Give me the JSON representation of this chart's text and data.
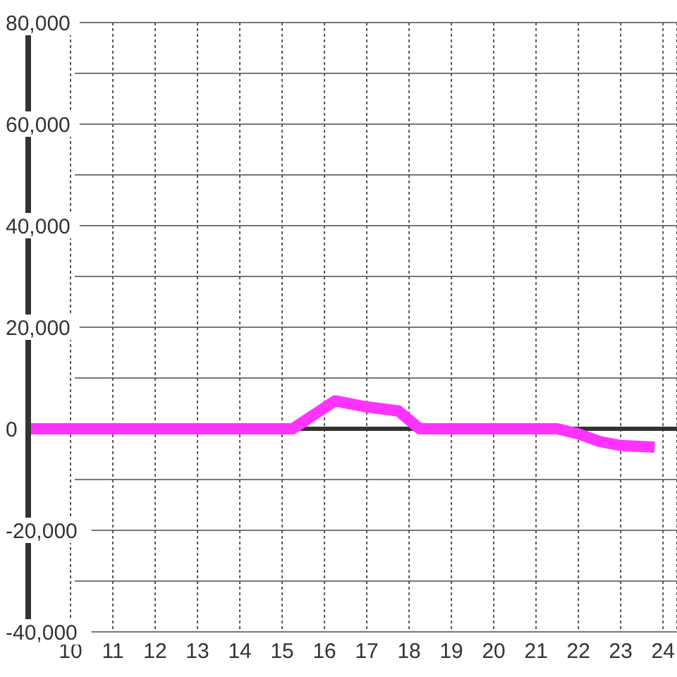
{
  "chart_data": {
    "type": "line",
    "x": [
      9,
      15.25,
      16.25,
      17,
      17.75,
      18.25,
      21.5,
      22,
      22.5,
      23,
      23.8
    ],
    "series": [
      {
        "color": "#ff33ff",
        "values": [
          0,
          0,
          5500,
          4300,
          3500,
          0,
          0,
          -1000,
          -2500,
          -3300,
          -3600
        ]
      }
    ],
    "xlim": [
      9,
      24.33
    ],
    "xticks": [
      10,
      11,
      12,
      13,
      14,
      15,
      16,
      17,
      18,
      19,
      20,
      21,
      22,
      23,
      24
    ],
    "ylim": [
      -40000,
      80000
    ],
    "yticks": [
      {
        "value": -40000,
        "label": "-40,000"
      },
      {
        "value": -30000,
        "label": null
      },
      {
        "value": -20000,
        "label": "-20,000"
      },
      {
        "value": -10000,
        "label": null
      },
      0,
      {
        "value": 10000,
        "label": null
      },
      {
        "value": 20000,
        "label": "20,000"
      },
      {
        "value": 30000,
        "label": null
      },
      {
        "value": 40000,
        "label": "40,000"
      },
      {
        "value": 50000,
        "label": null
      },
      {
        "value": 60000,
        "label": "60,000"
      },
      {
        "value": 70000,
        "label": null
      },
      {
        "value": 80000,
        "label": "80,000"
      }
    ],
    "grid": true,
    "ref_lines": [
      {
        "axis": "y",
        "value": 0,
        "color": "#333333"
      }
    ],
    "marker": "none",
    "line_style": "solid"
  }
}
